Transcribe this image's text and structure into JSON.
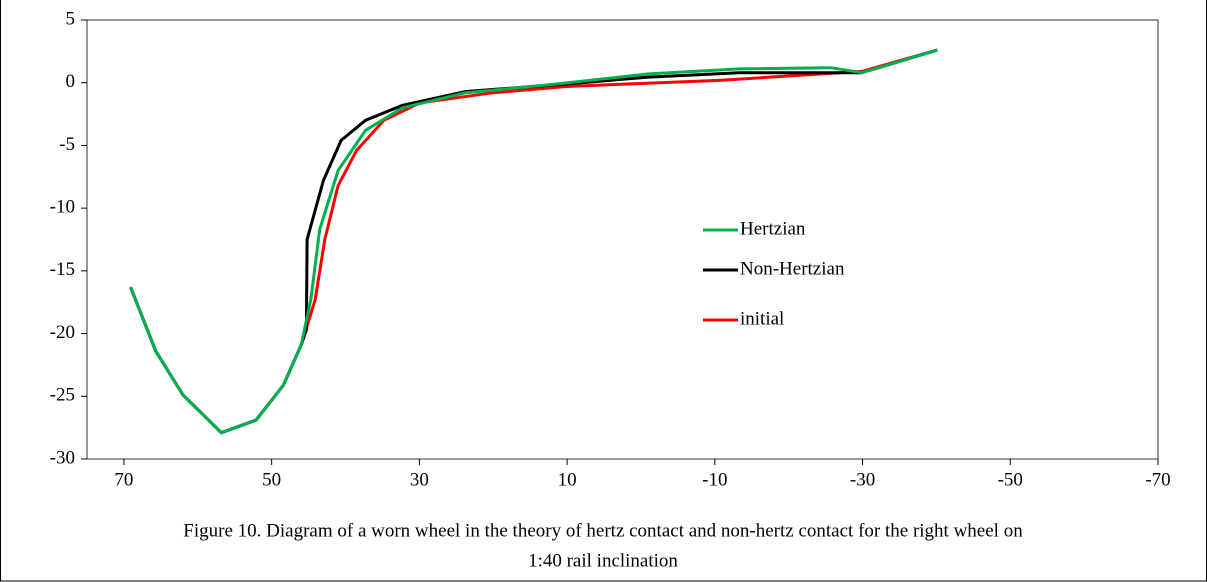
{
  "chart_data": {
    "type": "line",
    "xlim": [
      75,
      -70
    ],
    "xticks": [
      70,
      50,
      30,
      10,
      -10,
      -30,
      -50,
      -70
    ],
    "ylim": [
      -30,
      5
    ],
    "yticks": [
      5,
      0,
      -5,
      -10,
      -15,
      -20,
      -25,
      -30
    ],
    "grid": false,
    "legend": "right",
    "series": [
      {
        "name": "Hertzian",
        "color": "#00b050",
        "x": [
          69.1,
          65.7,
          62,
          56.8,
          52.1,
          48.4,
          46,
          44.7,
          43.5,
          41,
          37.3,
          32.3,
          23.7,
          11.4,
          -1,
          -13.3,
          -25.7,
          -29.9,
          -40.1
        ],
        "values": [
          -16.3,
          -21.4,
          -24.9,
          -27.9,
          -26.9,
          -24.1,
          -20.9,
          -17.3,
          -11.7,
          -7,
          -3.8,
          -2,
          -0.8,
          -0.1,
          0.7,
          1.1,
          1.2,
          0.8,
          2.6
        ]
      },
      {
        "name": "Non-Hertzian",
        "color": "#000000",
        "x": [
          69.1,
          65.7,
          62,
          56.8,
          52.1,
          48.4,
          46,
          45.3,
          45.2,
          43,
          40.6,
          37.3,
          32.3,
          23.7,
          10.1,
          -1,
          -13.3,
          -25.7,
          -29.9,
          -40.1
        ],
        "values": [
          -16.3,
          -21.4,
          -24.9,
          -27.9,
          -26.9,
          -24.1,
          -20.9,
          -19.7,
          -12.5,
          -7.8,
          -4.6,
          -3,
          -1.8,
          -0.7,
          -0.1,
          0.45,
          0.8,
          0.8,
          0.8,
          2.6
        ]
      },
      {
        "name": "initial",
        "color": "#ff0000",
        "x": [
          69.1,
          65.7,
          62,
          56.8,
          52.1,
          48.4,
          46,
          44.1,
          42.8,
          41,
          38.5,
          34.8,
          29.9,
          20,
          10.1,
          -10.9,
          -29.9,
          -40.1
        ],
        "values": [
          -16.3,
          -21.4,
          -24.9,
          -27.9,
          -26.9,
          -24.1,
          -20.9,
          -17.3,
          -12.5,
          -8.2,
          -5.4,
          -3,
          -1.6,
          -0.8,
          -0.3,
          0.2,
          0.9,
          2.6
        ]
      }
    ]
  },
  "caption": [
    "Figure 10. Diagram of a worn wheel in the theory of hertz contact and non-hertz contact for the right wheel on",
    "1:40 rail inclination"
  ]
}
